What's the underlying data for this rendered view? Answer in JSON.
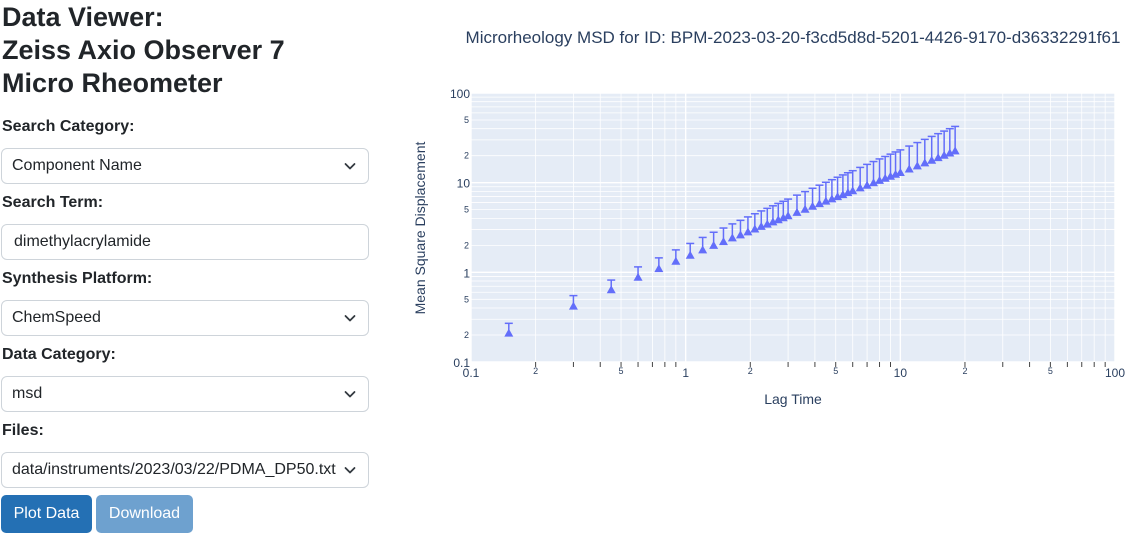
{
  "app": {
    "title_lines": [
      "Data Viewer:",
      "Zeiss Axio Observer 7",
      "Micro Rheometer"
    ]
  },
  "form": {
    "search_category": {
      "label": "Search Category:",
      "value": "Component Name"
    },
    "search_term": {
      "label": "Search Term:",
      "value": "dimethylacrylamide"
    },
    "synthesis_platform": {
      "label": "Synthesis Platform:",
      "value": "ChemSpeed"
    },
    "data_category": {
      "label": "Data Category:",
      "value": "msd"
    },
    "files": {
      "label": "Files:",
      "value": "data/instruments/2023/03/22/PDMA_DP50.txt"
    }
  },
  "buttons": {
    "plot": "Plot Data",
    "download": "Download"
  },
  "colors": {
    "series": "#636efa",
    "plot_bg": "#e5ecf6",
    "plot_btn": "#2470b4",
    "download_btn": "#6ea1cf"
  },
  "chart_data": {
    "type": "scatter",
    "title": "Microrheology MSD for ID: BPM-2023-03-20-f3cd5d8d-5201-4426-9170-d36332291f61",
    "xlabel": "Lag Time",
    "ylabel": "Mean Square Displacement",
    "x_scale": "log",
    "y_scale": "log",
    "xlim": [
      0.1,
      100
    ],
    "ylim": [
      0.1,
      100
    ],
    "x_ticks": [
      "0.1",
      "1",
      "10",
      "100"
    ],
    "y_ticks": [
      "0.1",
      "1",
      "10",
      "100"
    ],
    "minor_tick_labels": [
      "2",
      "5"
    ],
    "grid": true,
    "marker": "triangle-up with error bars",
    "series": [
      {
        "x": [
          0.15,
          0.3,
          0.45,
          0.6,
          0.75,
          0.9,
          1.05,
          1.2,
          1.35,
          1.5,
          1.65,
          1.8,
          1.95,
          2.1,
          2.25,
          2.4,
          2.55,
          2.7,
          2.85,
          3.0,
          3.3,
          3.6,
          3.9,
          4.2,
          4.5,
          4.8,
          5.1,
          5.4,
          5.7,
          6.0,
          6.5,
          7.0,
          7.5,
          8.0,
          8.5,
          9.0,
          9.5,
          10.0,
          11.0,
          12.0,
          13.0,
          14.0,
          15.0,
          16.0,
          17.0,
          18.0
        ],
        "y": [
          0.21,
          0.42,
          0.64,
          0.88,
          1.1,
          1.33,
          1.55,
          1.78,
          2.0,
          2.2,
          2.42,
          2.62,
          2.83,
          3.04,
          3.25,
          3.45,
          3.65,
          3.86,
          4.06,
          4.27,
          4.66,
          5.05,
          5.45,
          5.84,
          6.22,
          6.6,
          6.98,
          7.36,
          7.74,
          8.12,
          8.74,
          9.36,
          9.98,
          10.6,
          11.2,
          11.8,
          12.4,
          13.0,
          14.2,
          15.4,
          16.6,
          17.8,
          19.0,
          20.2,
          21.4,
          22.6
        ],
        "error_upper": [
          0.27,
          0.55,
          0.82,
          1.15,
          1.45,
          1.78,
          2.1,
          2.45,
          2.8,
          3.12,
          3.47,
          3.8,
          4.15,
          4.5,
          4.84,
          5.17,
          5.52,
          5.87,
          6.2,
          6.56,
          7.26,
          7.95,
          8.66,
          9.37,
          10.1,
          10.8,
          11.5,
          12.2,
          12.9,
          13.6,
          14.8,
          16.0,
          17.2,
          18.4,
          19.6,
          20.8,
          22.0,
          23.2,
          25.6,
          28.0,
          30.4,
          32.8,
          35.2,
          37.6,
          40.0,
          42.4
        ]
      }
    ]
  }
}
